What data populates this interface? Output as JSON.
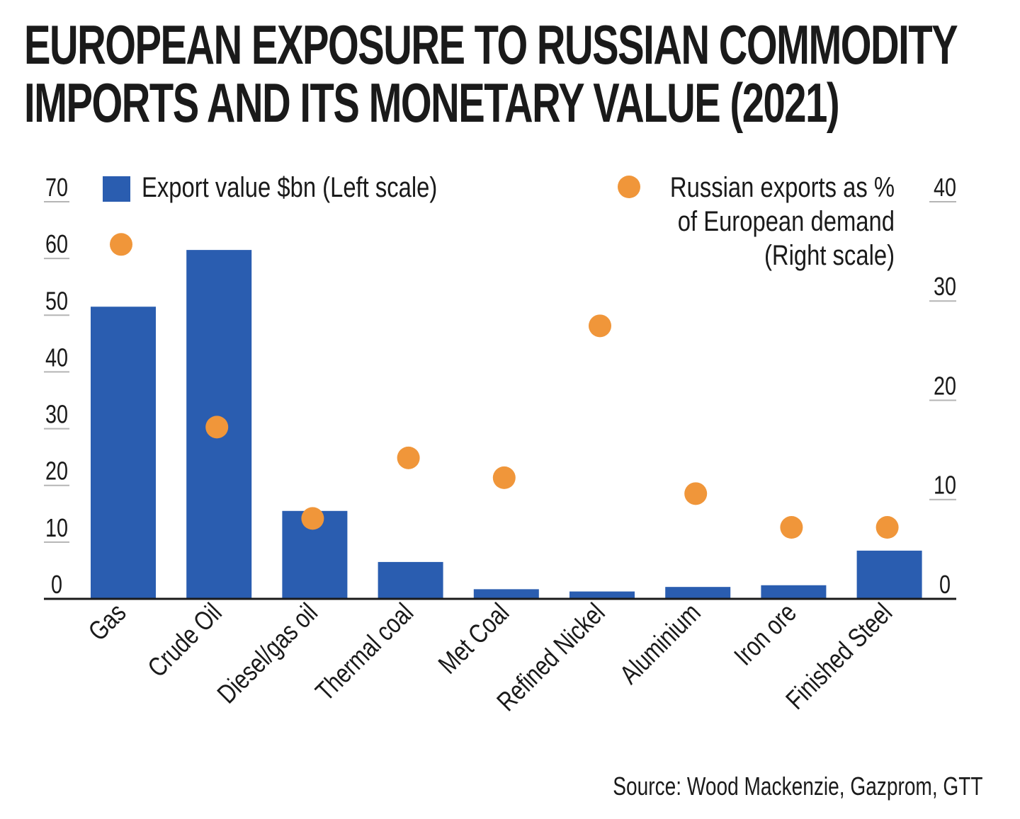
{
  "title_lines": [
    "EUROPEAN EXPOSURE TO RUSSIAN COMMODITY",
    "IMPORTS AND ITS MONETARY VALUE (2021)"
  ],
  "source": "Source: Wood Mackenzie, Gazprom, GTT",
  "colors": {
    "bar": "#2a5db0",
    "dot": "#f0963a",
    "text": "#1a1a1a",
    "axis": "#1a1a1a",
    "tick": "#b5b5b5"
  },
  "chart_data": {
    "type": "bar",
    "categories": [
      "Gas",
      "Crude Oil",
      "Diesel/gas oil",
      "Thermal coal",
      "Met Coal",
      "Refined Nickel",
      "Aluminium",
      "Iron ore",
      "Finished Steel"
    ],
    "series": [
      {
        "name": "Export value $bn (Left scale)",
        "type": "bar",
        "axis": "left",
        "values": [
          51.5,
          61.5,
          15.5,
          6.5,
          1.7,
          1.3,
          2.1,
          2.4,
          8.5
        ]
      },
      {
        "name": "Russian exports as % of European demand (Right scale)",
        "name_lines": [
          "Russian exports as %",
          "of European demand",
          "(Right scale)"
        ],
        "type": "scatter",
        "axis": "right",
        "values": [
          35.7,
          17.3,
          8.1,
          14.2,
          12.2,
          27.5,
          10.6,
          7.2,
          7.2
        ]
      }
    ],
    "left_axis": {
      "ylim": [
        0,
        70
      ],
      "ticks": [
        "0",
        "10",
        "20",
        "30",
        "40",
        "50",
        "60",
        "70"
      ]
    },
    "right_axis": {
      "ylim": [
        0,
        40
      ],
      "ticks": [
        "0",
        "10",
        "20",
        "30",
        "40"
      ]
    },
    "grid": false,
    "legend_placement": "top"
  }
}
